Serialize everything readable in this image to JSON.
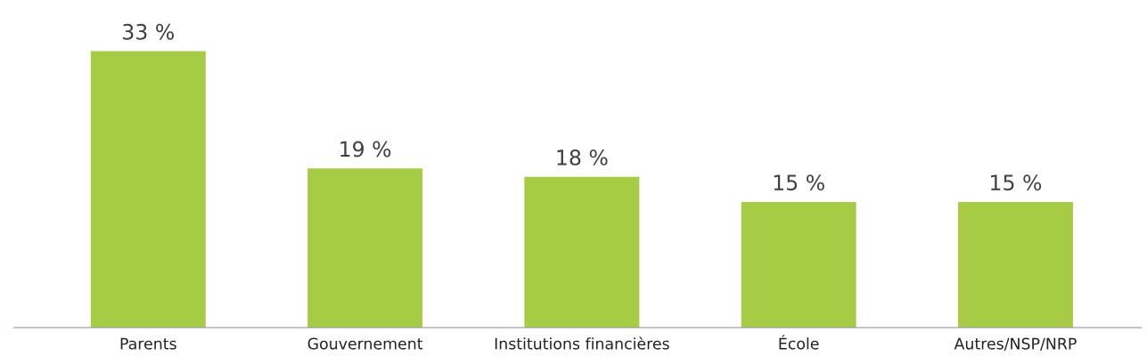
{
  "chart_data": {
    "type": "bar",
    "categories": [
      "Parents",
      "Gouvernement",
      "Institutions financières",
      "École",
      "Autres/NSP/NRP"
    ],
    "values": [
      33,
      19,
      18,
      15,
      15
    ],
    "value_labels": [
      "33 %",
      "19 %",
      "18 %",
      "15 %",
      "15 %"
    ],
    "color": "#a6cc45",
    "grid": false,
    "legend": false,
    "tick_labels": "x"
  }
}
